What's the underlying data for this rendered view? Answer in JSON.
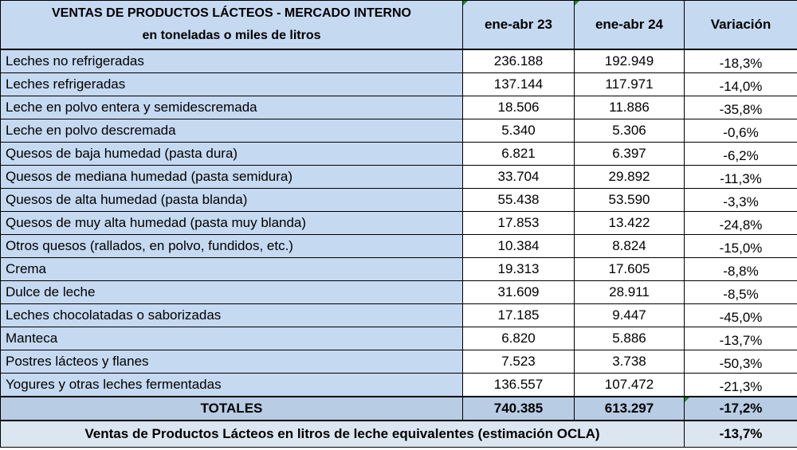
{
  "header": {
    "title_line1": "VENTAS DE PRODUCTOS LÁCTEOS - MERCADO INTERNO",
    "title_line2": "en toneladas o miles de litros",
    "col_2023": "ene-abr 23",
    "col_2024": "ene-abr 24",
    "col_variation": "Variación"
  },
  "rows": [
    {
      "product": "Leches no refrigeradas",
      "v23": "236.188",
      "v24": "192.949",
      "var": "-18,3%"
    },
    {
      "product": "Leches refrigeradas",
      "v23": "137.144",
      "v24": "117.971",
      "var": "-14,0%"
    },
    {
      "product": "Leche en polvo entera y semidescremada",
      "v23": "18.506",
      "v24": "11.886",
      "var": "-35,8%"
    },
    {
      "product": "Leche en polvo descremada",
      "v23": "5.340",
      "v24": "5.306",
      "var": "-0,6%"
    },
    {
      "product": "Quesos de baja humedad (pasta dura)",
      "v23": "6.821",
      "v24": "6.397",
      "var": "-6,2%"
    },
    {
      "product": "Quesos de mediana humedad (pasta semidura)",
      "v23": "33.704",
      "v24": "29.892",
      "var": "-11,3%"
    },
    {
      "product": "Quesos de alta humedad (pasta blanda)",
      "v23": "55.438",
      "v24": "53.590",
      "var": "-3,3%"
    },
    {
      "product": "Quesos de muy alta humedad (pasta muy blanda)",
      "v23": "17.853",
      "v24": "13.422",
      "var": "-24,8%"
    },
    {
      "product": "Otros quesos (rallados, en polvo, fundidos, etc.)",
      "v23": "10.384",
      "v24": "8.824",
      "var": "-15,0%"
    },
    {
      "product": "Crema",
      "v23": "19.313",
      "v24": "17.605",
      "var": "-8,8%"
    },
    {
      "product": "Dulce de leche",
      "v23": "31.609",
      "v24": "28.911",
      "var": "-8,5%"
    },
    {
      "product": "Leches chocolatadas o saborizadas",
      "v23": "17.185",
      "v24": "9.447",
      "var": "-45,0%"
    },
    {
      "product": "Manteca",
      "v23": "6.820",
      "v24": "5.886",
      "var": "-13,7%"
    },
    {
      "product": "Postres lácteos y flanes",
      "v23": "7.523",
      "v24": "3.738",
      "var": "-50,3%"
    },
    {
      "product": "Yogures y otras leches fermentadas",
      "v23": "136.557",
      "v24": "107.472",
      "var": "-21,3%"
    }
  ],
  "totals": {
    "label": "TOTALES",
    "v23": "740.385",
    "v24": "613.297",
    "var": "-17,2%"
  },
  "equivalent": {
    "label": "Ventas de Productos Lácteos en litros de leche equivalentes (estimación OCLA)",
    "var": "-13,7%"
  }
}
